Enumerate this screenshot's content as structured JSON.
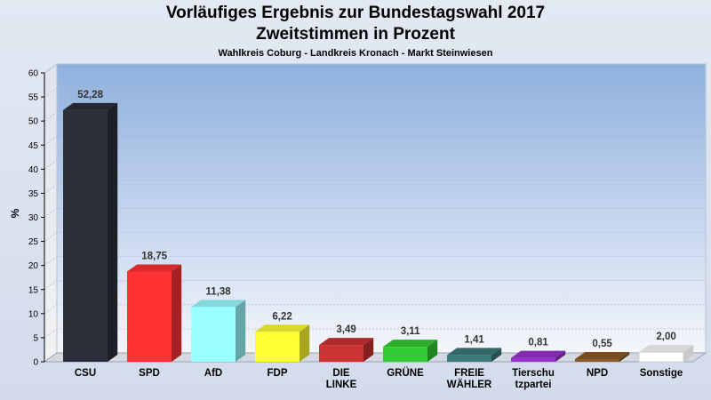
{
  "chart_data": {
    "type": "bar",
    "title": "Vorläufiges Ergebnis zur Bundestagswahl 2017",
    "subtitle": "Zweitstimmen in Prozent",
    "subsubtitle": "Wahlkreis Coburg - Landkreis Kronach - Markt Steinwiesen",
    "xlabel": "",
    "ylabel": "%",
    "ylim": [
      0,
      60
    ],
    "yticks": [
      0,
      5,
      10,
      15,
      20,
      25,
      30,
      35,
      40,
      45,
      50,
      55,
      60
    ],
    "categories": [
      [
        "CSU"
      ],
      [
        "SPD"
      ],
      [
        "AfD"
      ],
      [
        "FDP"
      ],
      [
        "DIE",
        "LINKE"
      ],
      [
        "GRÜNE"
      ],
      [
        "FREIE",
        "WÄHLER"
      ],
      [
        "Tierschu",
        "tzpartei"
      ],
      [
        "NPD"
      ],
      [
        "Sonstige"
      ]
    ],
    "values": [
      52.28,
      18.75,
      11.38,
      6.22,
      3.49,
      3.11,
      1.41,
      0.81,
      0.55,
      2.0
    ],
    "value_labels": [
      "52,28",
      "18,75",
      "11,38",
      "6,22",
      "3,49",
      "3,11",
      "1,41",
      "0,81",
      "0,55",
      "2,00"
    ],
    "colors": [
      "#2b2f3a",
      "#ff3333",
      "#99ffff",
      "#ffff33",
      "#cc3333",
      "#33cc33",
      "#3d7a7a",
      "#9933cc",
      "#8b5a2b",
      "#ffffff"
    ]
  }
}
